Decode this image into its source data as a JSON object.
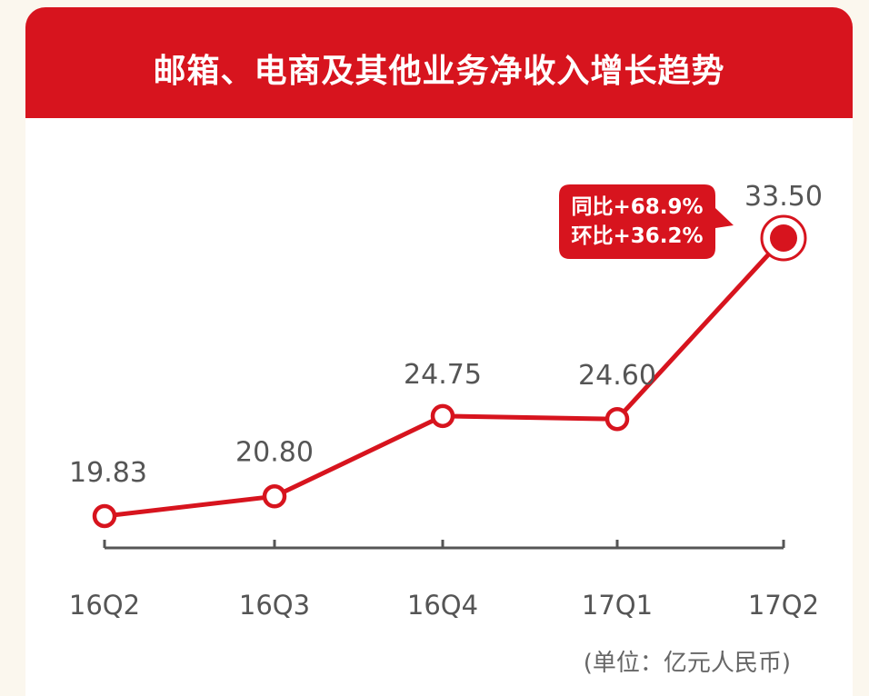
{
  "chart_data": {
    "type": "line",
    "title": "邮箱、电商及其他业务净收入增长趋势",
    "categories": [
      "16Q2",
      "16Q3",
      "16Q4",
      "17Q1",
      "17Q2"
    ],
    "series": [
      {
        "values": [
          19.83,
          20.8,
          24.75,
          24.6,
          33.5
        ],
        "labels": [
          "19.83",
          "20.80",
          "24.75",
          "24.60",
          "33.50"
        ]
      }
    ],
    "unit": "(单位：亿元人民币)",
    "annotation": {
      "category": "17Q2",
      "lines": [
        "同比+68.9%",
        "环比+36.2%"
      ]
    },
    "ylim": [
      19.83,
      33.5
    ],
    "grid": false,
    "legend": "none",
    "colors": {
      "header": "#d7141e",
      "line": "#d7141e",
      "axis": "#555555",
      "background": "#fbf7ee"
    }
  }
}
